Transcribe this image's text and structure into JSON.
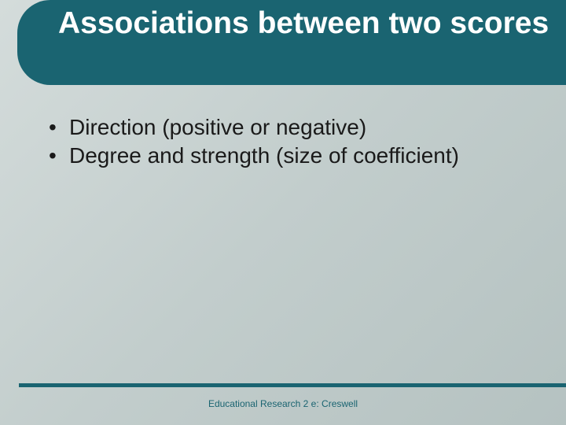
{
  "colors": {
    "primary": "#1a6471",
    "title_text": "#ffffff",
    "body_text": "#1a1a1a",
    "background_light": "#d4dcdb",
    "background_dark": "#b5c2c1"
  },
  "typography": {
    "title_fontsize": 39,
    "title_weight": 700,
    "body_fontsize": 28,
    "footer_fontsize": 12
  },
  "header": {
    "title": "Associations between two scores"
  },
  "content": {
    "bullets": [
      "Direction (positive or negative)",
      "Degree and strength  (size of coefficient)"
    ]
  },
  "footer": {
    "text": "Educational Research 2 e:  Creswell"
  }
}
